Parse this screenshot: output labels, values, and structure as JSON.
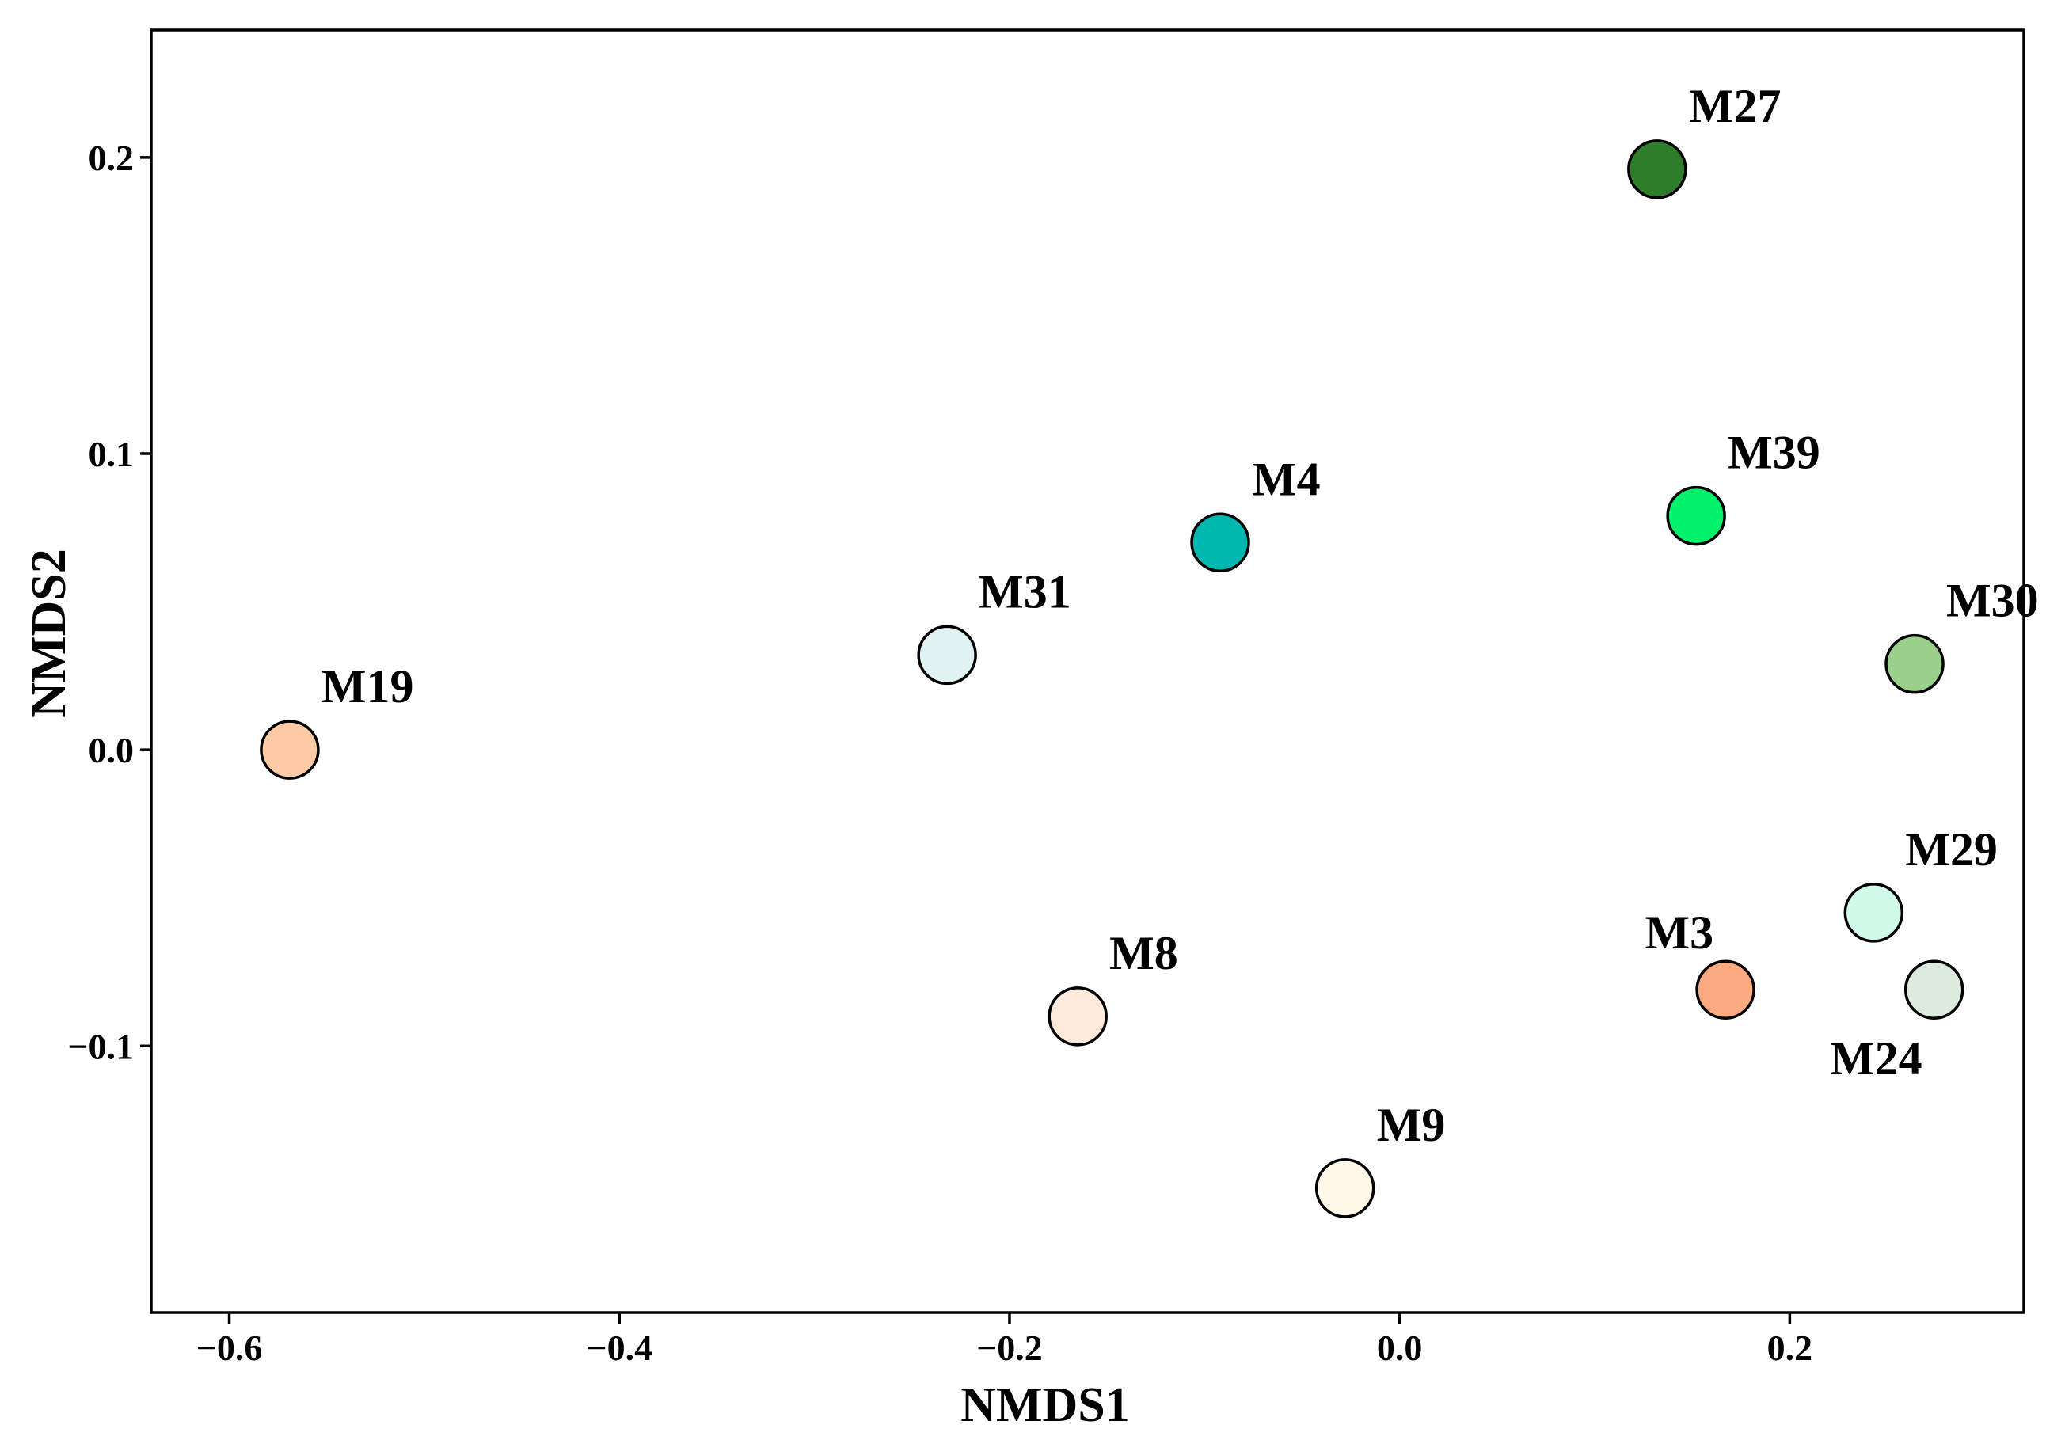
{
  "chart_data": {
    "type": "scatter",
    "title": "",
    "xlabel": "NMDS1",
    "ylabel": "NMDS2",
    "xlim": [
      -0.64,
      0.32
    ],
    "ylim": [
      -0.19,
      0.243
    ],
    "xticks": [
      -0.6,
      -0.4,
      -0.2,
      0.0,
      0.2
    ],
    "xtick_labels": [
      "−0.6",
      "−0.4",
      "−0.2",
      "0.0",
      "0.2"
    ],
    "yticks": [
      -0.1,
      0.0,
      0.1,
      0.2
    ],
    "ytick_labels": [
      "−0.1",
      "0.0",
      "0.1",
      "0.2"
    ],
    "grid": false,
    "points": [
      {
        "label": "M27",
        "x": 0.132,
        "y": 0.196,
        "color": "#2e7d2a",
        "label_pos": "upper-right"
      },
      {
        "label": "M39",
        "x": 0.152,
        "y": 0.079,
        "color": "#00f26b",
        "label_pos": "upper-right"
      },
      {
        "label": "M4",
        "x": -0.092,
        "y": 0.07,
        "color": "#00b8b0",
        "label_pos": "upper-right"
      },
      {
        "label": "M31",
        "x": -0.232,
        "y": 0.032,
        "color": "#e1f2f2",
        "label_pos": "upper-right"
      },
      {
        "label": "M30",
        "x": 0.264,
        "y": 0.029,
        "color": "#9bd08b",
        "label_pos": "upper-right"
      },
      {
        "label": "M19",
        "x": -0.569,
        "y": 0.0,
        "color": "#fccaa4",
        "label_pos": "upper-right"
      },
      {
        "label": "M29",
        "x": 0.243,
        "y": -0.055,
        "color": "#d2fae8",
        "label_pos": "upper-right"
      },
      {
        "label": "M3",
        "x": 0.167,
        "y": -0.081,
        "color": "#fcaa80",
        "label_pos": "upper-left"
      },
      {
        "label": "M24",
        "x": 0.274,
        "y": -0.081,
        "color": "#dcebdc",
        "label_pos": "lower-left"
      },
      {
        "label": "M8",
        "x": -0.165,
        "y": -0.09,
        "color": "#fdeadb",
        "label_pos": "upper-right"
      },
      {
        "label": "M9",
        "x": -0.028,
        "y": -0.148,
        "color": "#fff8e8",
        "label_pos": "upper-right"
      }
    ]
  }
}
